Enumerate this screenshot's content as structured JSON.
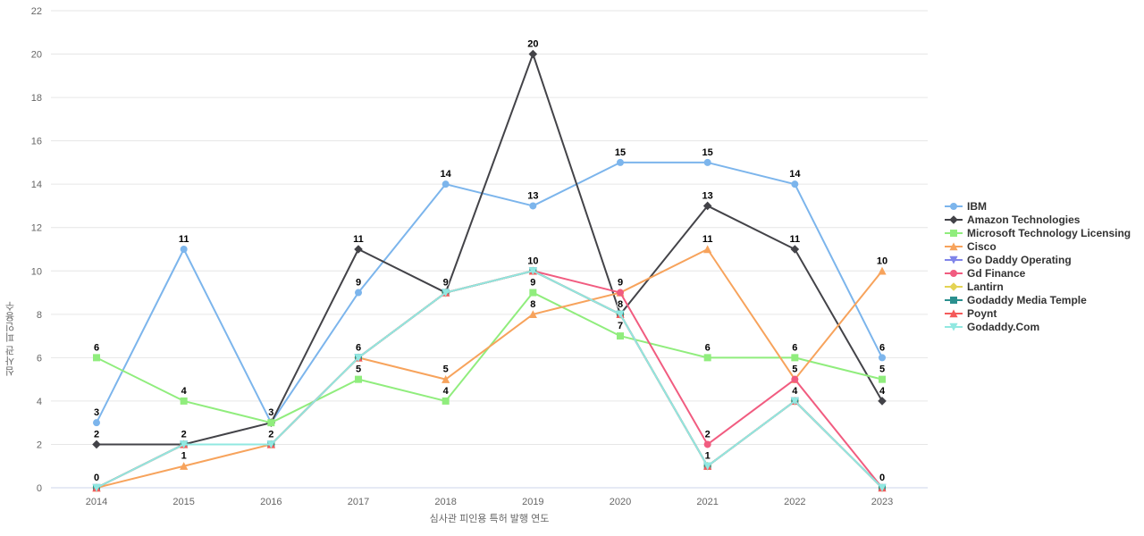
{
  "chart_data": {
    "type": "line",
    "title": "",
    "xlabel": "심사관 피인용 특허 발행 연도",
    "ylabel": "심사관 피인용수",
    "x": [
      2014,
      2015,
      2016,
      2017,
      2018,
      2019,
      2020,
      2021,
      2022,
      2023
    ],
    "ylim": [
      0,
      22
    ],
    "yticks": [
      0,
      2,
      4,
      6,
      8,
      10,
      12,
      14,
      16,
      18,
      20,
      22
    ],
    "grid": true,
    "legend_position": "right",
    "series": [
      {
        "name": "IBM",
        "color": "#7cb5ec",
        "symbol": "circle",
        "values": [
          3,
          11,
          3,
          9,
          14,
          13,
          15,
          15,
          14,
          6
        ]
      },
      {
        "name": "Amazon Technologies",
        "color": "#434348",
        "symbol": "diamond",
        "values": [
          2,
          2,
          3,
          11,
          9,
          20,
          8,
          13,
          11,
          4
        ]
      },
      {
        "name": "Microsoft Technology Licensing",
        "color": "#90ed7d",
        "symbol": "square",
        "values": [
          6,
          4,
          3,
          5,
          4,
          9,
          7,
          6,
          6,
          5
        ]
      },
      {
        "name": "Cisco",
        "color": "#f7a35c",
        "symbol": "triangle",
        "values": [
          0,
          1,
          2,
          6,
          5,
          8,
          9,
          11,
          5,
          10
        ]
      },
      {
        "name": "Go Daddy Operating",
        "color": "#8085e9",
        "symbol": "triangle-down",
        "values": [
          0,
          2,
          2,
          6,
          9,
          10,
          8,
          1,
          4,
          0
        ]
      },
      {
        "name": "Gd Finance",
        "color": "#f15c80",
        "symbol": "circle",
        "values": [
          0,
          2,
          2,
          6,
          9,
          10,
          9,
          2,
          5,
          0
        ]
      },
      {
        "name": "Lantirn",
        "color": "#e4d354",
        "symbol": "diamond",
        "values": [
          0,
          2,
          2,
          6,
          9,
          10,
          8,
          1,
          4,
          0
        ]
      },
      {
        "name": "Godaddy Media Temple",
        "color": "#2b908f",
        "symbol": "square",
        "values": [
          0,
          2,
          2,
          6,
          9,
          10,
          8,
          1,
          4,
          0
        ]
      },
      {
        "name": "Poynt",
        "color": "#f45b5b",
        "symbol": "triangle",
        "values": [
          0,
          2,
          2,
          6,
          9,
          10,
          8,
          1,
          4,
          0
        ]
      },
      {
        "name": "Godaddy.Com",
        "color": "#91e8e1",
        "symbol": "triangle-down",
        "values": [
          0,
          2,
          2,
          6,
          9,
          10,
          8,
          1,
          4,
          0
        ]
      }
    ]
  },
  "colors": {
    "background": "#ffffff",
    "gridline": "#e6e6e6",
    "axis_line": "#ccd6eb",
    "tick_text": "#666666",
    "axis_title_text": "#666666",
    "data_label_text": "#000000",
    "legend_text": "#333333"
  }
}
